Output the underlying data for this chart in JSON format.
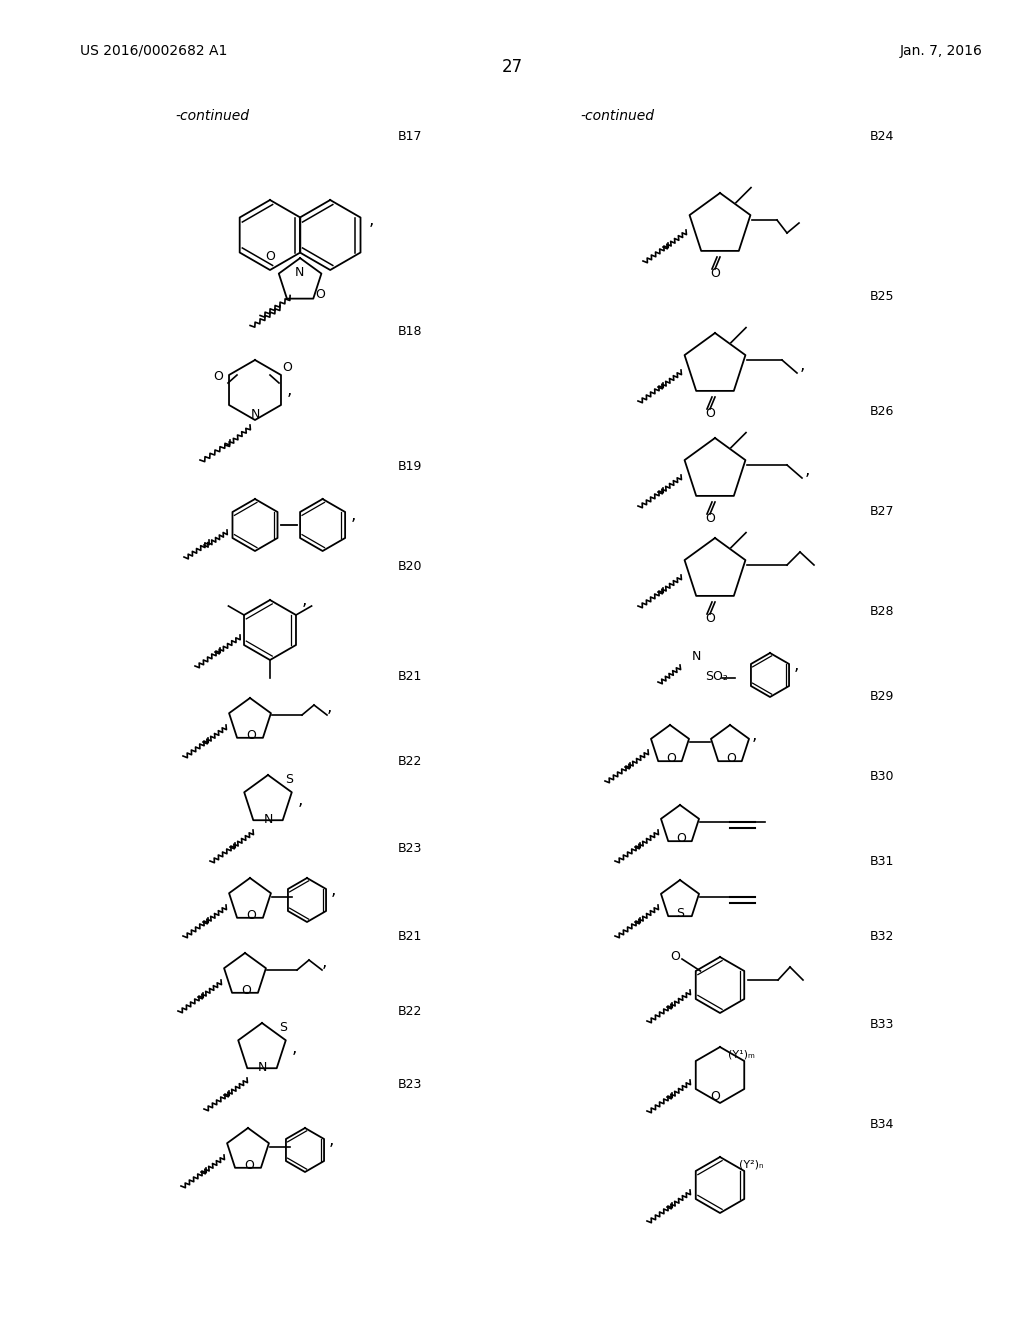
{
  "page_header_left": "US 2016/0002682 A1",
  "page_header_right": "Jan. 7, 2016",
  "page_number": "27",
  "background_color": "#ffffff",
  "text_color": "#000000",
  "continued_text": "-continued",
  "labels_left": [
    "B17",
    "B18",
    "B19",
    "B20",
    "B21",
    "B22",
    "B23"
  ],
  "labels_right": [
    "B24",
    "B25",
    "B26",
    "B27",
    "B28",
    "B29",
    "B30",
    "B31",
    "B32",
    "B33",
    "B34"
  ],
  "fig_width": 10.24,
  "fig_height": 13.2
}
